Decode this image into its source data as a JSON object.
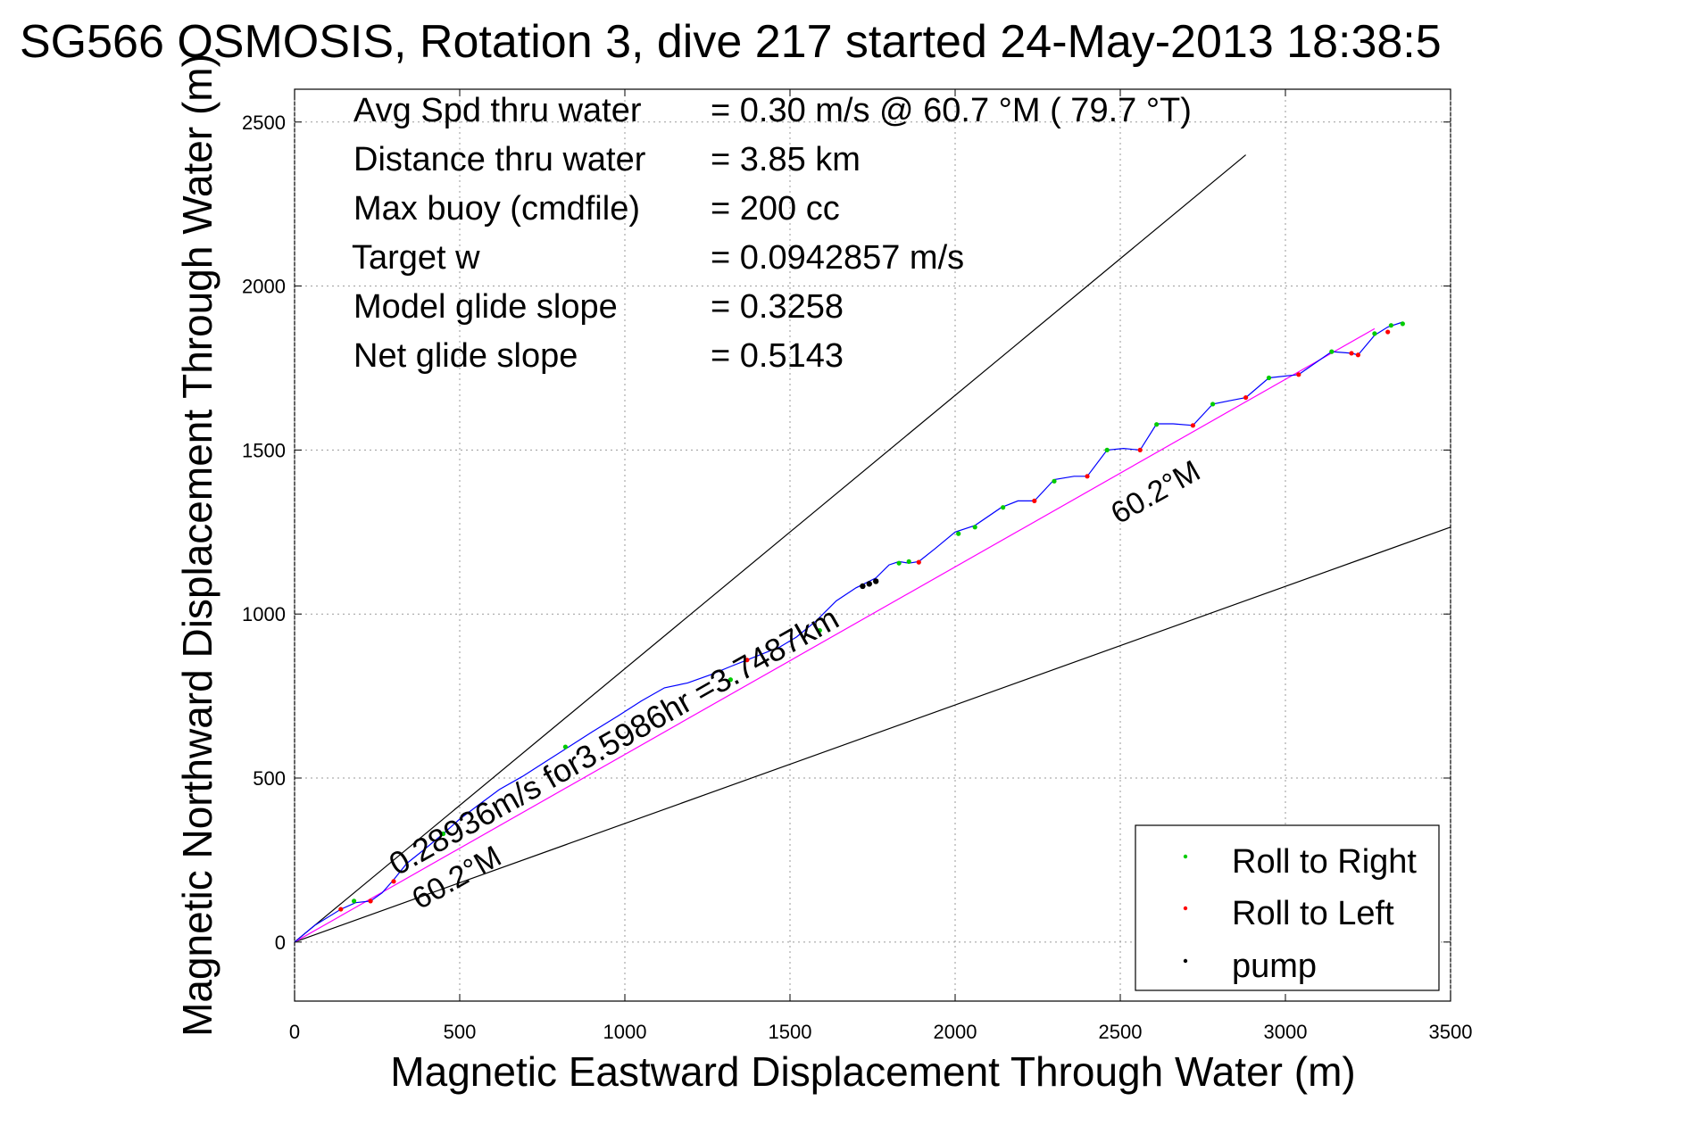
{
  "chart_data": {
    "type": "line",
    "title": "SG566 OSMOSIS, Rotation 3, dive 217 started 24-May-2013 18:38:5",
    "xlabel": "Magnetic Eastward Displacement Through Water (m)",
    "ylabel": "Magnetic Northward Displacement Through Water (m)",
    "xlim": [
      0,
      3500
    ],
    "ylim": [
      -180,
      2600
    ],
    "xticks": [
      0,
      500,
      1000,
      1500,
      2000,
      2500,
      3000,
      3500
    ],
    "yticks": [
      0,
      500,
      1000,
      1500,
      2000,
      2500
    ],
    "grid": true,
    "legend_position": "bottom-right",
    "legend": [
      {
        "label": "Roll to Right",
        "color": "#00cc00"
      },
      {
        "label": "Roll to Left",
        "color": "#ff0000"
      },
      {
        "label": "pump",
        "color": "#000000"
      }
    ],
    "info_rows": [
      {
        "label": "Avg Spd thru water",
        "value": "=  0.30 m/s @  60.7 °M ( 79.7 °T)"
      },
      {
        "label": "Distance thru water",
        "value": "=  3.85 km"
      },
      {
        "label": "Max buoy (cmdfile)",
        "value": "= 200 cc"
      },
      {
        "label": "Target w",
        "value": "= 0.0942857 m/s"
      },
      {
        "label": "Model glide slope",
        "value": "= 0.3258"
      },
      {
        "label": "Net glide slope",
        "value": "= 0.5143"
      }
    ],
    "annotations": [
      {
        "text": "0.28936m/s for3.5986hr =3.7487km"
      },
      {
        "text": "60.2°M"
      },
      {
        "text": "60.2°M"
      }
    ],
    "reference_lines": [
      {
        "name": "upper",
        "x": [
          0,
          2880
        ],
        "y": [
          0,
          2400
        ],
        "color": "#000000"
      },
      {
        "name": "lower",
        "x": [
          0,
          3500
        ],
        "y": [
          0,
          1265
        ],
        "color": "#000000"
      },
      {
        "name": "net",
        "x": [
          0,
          3270
        ],
        "y": [
          0,
          1870
        ],
        "color": "#ff00ff"
      }
    ],
    "series": [
      {
        "name": "track",
        "color": "#0000ff",
        "x": [
          0,
          60,
          140,
          185,
          230,
          265,
          300,
          340,
          390,
          450,
          500,
          560,
          620,
          690,
          760,
          830,
          900,
          980,
          1050,
          1120,
          1190,
          1260,
          1320,
          1370,
          1420,
          1470,
          1520,
          1580,
          1640,
          1700,
          1760,
          1800,
          1830,
          1860,
          1890,
          1940,
          2000,
          2060,
          2140,
          2190,
          2240,
          2300,
          2360,
          2400,
          2460,
          2510,
          2560,
          2610,
          2660,
          2720,
          2780,
          2830,
          2880,
          2950,
          3040,
          3090,
          3140,
          3200,
          3220,
          3270,
          3310,
          3355
        ],
        "y": [
          0,
          50,
          100,
          120,
          125,
          150,
          190,
          240,
          280,
          330,
          375,
          420,
          465,
          505,
          550,
          595,
          640,
          690,
          735,
          775,
          790,
          815,
          840,
          860,
          880,
          900,
          930,
          980,
          1040,
          1080,
          1110,
          1150,
          1160,
          1155,
          1160,
          1200,
          1250,
          1270,
          1325,
          1345,
          1345,
          1410,
          1420,
          1420,
          1500,
          1505,
          1500,
          1580,
          1580,
          1575,
          1640,
          1650,
          1660,
          1720,
          1730,
          1765,
          1800,
          1795,
          1790,
          1850,
          1875,
          1890
        ]
      },
      {
        "name": "Roll to Right",
        "color": "#00cc00",
        "x": [
          180,
          450,
          820,
          1320,
          1590,
          1830,
          1860,
          2010,
          2060,
          2145,
          2300,
          2460,
          2610,
          2780,
          2950,
          3140,
          3270,
          3320,
          3355
        ],
        "y": [
          125,
          330,
          595,
          800,
          950,
          1155,
          1160,
          1245,
          1265,
          1325,
          1405,
          1500,
          1578,
          1640,
          1720,
          1800,
          1855,
          1880,
          1885
        ]
      },
      {
        "name": "Roll to Left",
        "color": "#ff0000",
        "x": [
          140,
          230,
          300,
          1370,
          1890,
          2240,
          2400,
          2560,
          2720,
          2880,
          3040,
          3200,
          3220,
          3310
        ],
        "y": [
          100,
          125,
          185,
          860,
          1158,
          1345,
          1420,
          1500,
          1575,
          1660,
          1730,
          1795,
          1790,
          1860
        ]
      },
      {
        "name": "pump",
        "color": "#000000",
        "x": [
          1720,
          1740,
          1760
        ],
        "y": [
          1085,
          1092,
          1100
        ]
      }
    ]
  }
}
